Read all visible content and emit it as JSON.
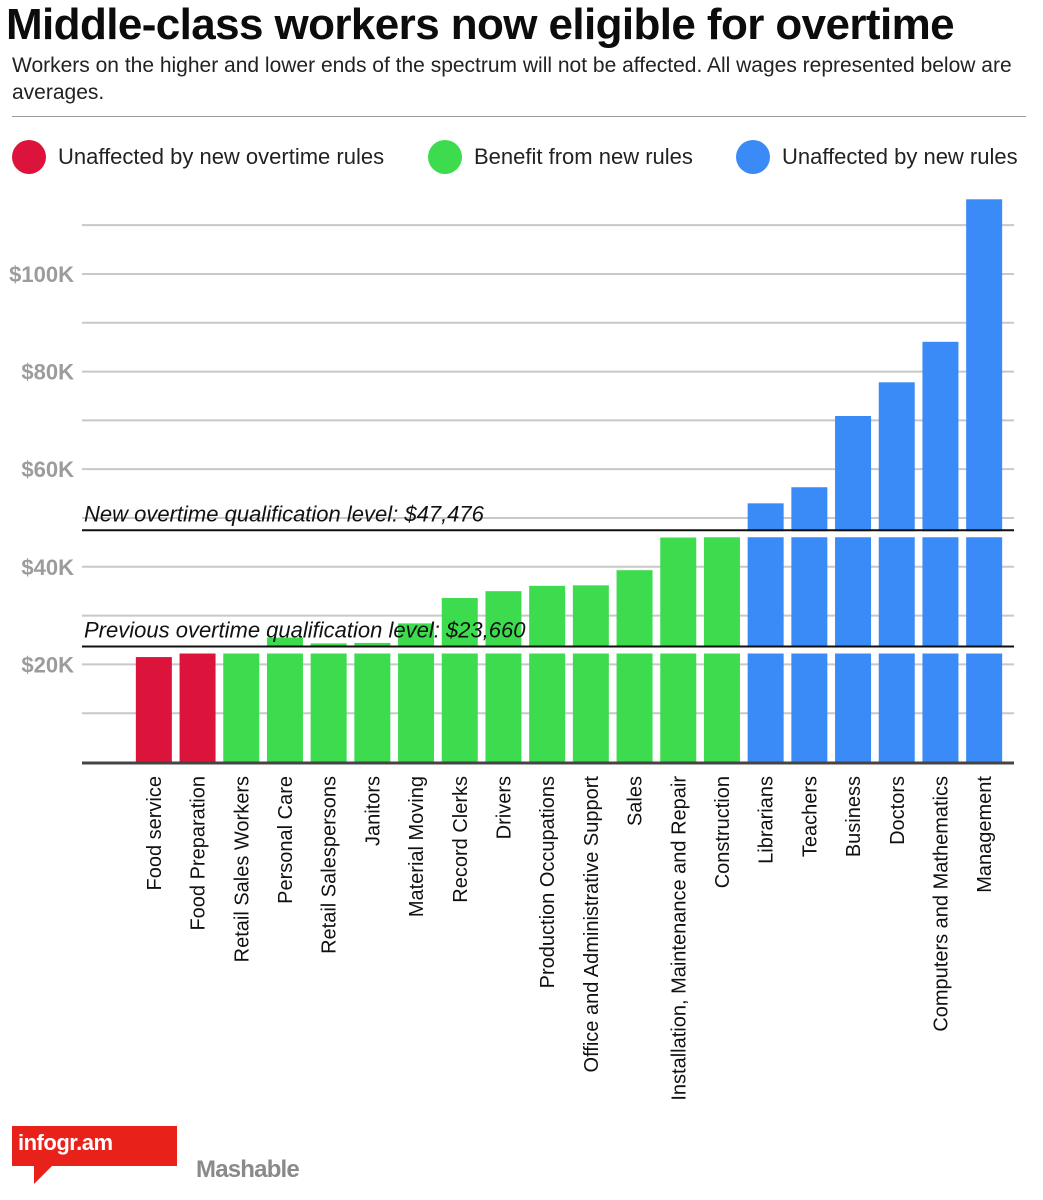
{
  "header": {
    "title": "Middle-class workers now eligible for overtime",
    "subtitle": "Workers on the higher and lower ends of the spectrum will not be affected. All wages represented below are averages."
  },
  "legend": [
    {
      "label": "Unaffected by new overtime rules",
      "color": "#dc143c"
    },
    {
      "label": "Benefit from new rules",
      "color": "#3ddc4f"
    },
    {
      "label": "Unaffected by new rules",
      "color": "#3a8bf7"
    }
  ],
  "chart_data": {
    "type": "bar",
    "ylim": [
      0,
      117000
    ],
    "y_ticks": [
      20000,
      40000,
      60000,
      80000,
      100000
    ],
    "y_tick_labels": [
      "$20K",
      "$40K",
      "$60K",
      "$80K",
      "$100K"
    ],
    "grid_step": 10000,
    "categories": [
      "Food service",
      "Food Preparation",
      "Retail Sales Workers",
      "Personal Care",
      "Retail Salespersons",
      "Janitors",
      "Material Moving",
      "Record Clerks",
      "Drivers",
      "Production Occupations",
      "Office and Administrative Support",
      "Sales",
      "Installation, Maintenance and Repair",
      "Construction",
      "Librarians",
      "Teachers",
      "Business",
      "Doctors",
      "Computers and Mathematics",
      "Management"
    ],
    "values": [
      21500,
      22600,
      23200,
      25500,
      24300,
      24400,
      28400,
      33600,
      35000,
      36100,
      36200,
      39300,
      46000,
      46300,
      53000,
      56300,
      70900,
      77800,
      86100,
      115300
    ],
    "groups": [
      0,
      0,
      1,
      1,
      1,
      1,
      1,
      1,
      1,
      1,
      1,
      1,
      1,
      1,
      2,
      2,
      2,
      2,
      2,
      2
    ],
    "reference_lines": [
      {
        "label": "New overtime qualification level: $47,476",
        "value": 47476
      },
      {
        "label": "Previous overtime qualification level: $23,660",
        "value": 23660
      }
    ]
  },
  "footer": {
    "logo_text": "infogr.am",
    "brand": "Mashable"
  }
}
